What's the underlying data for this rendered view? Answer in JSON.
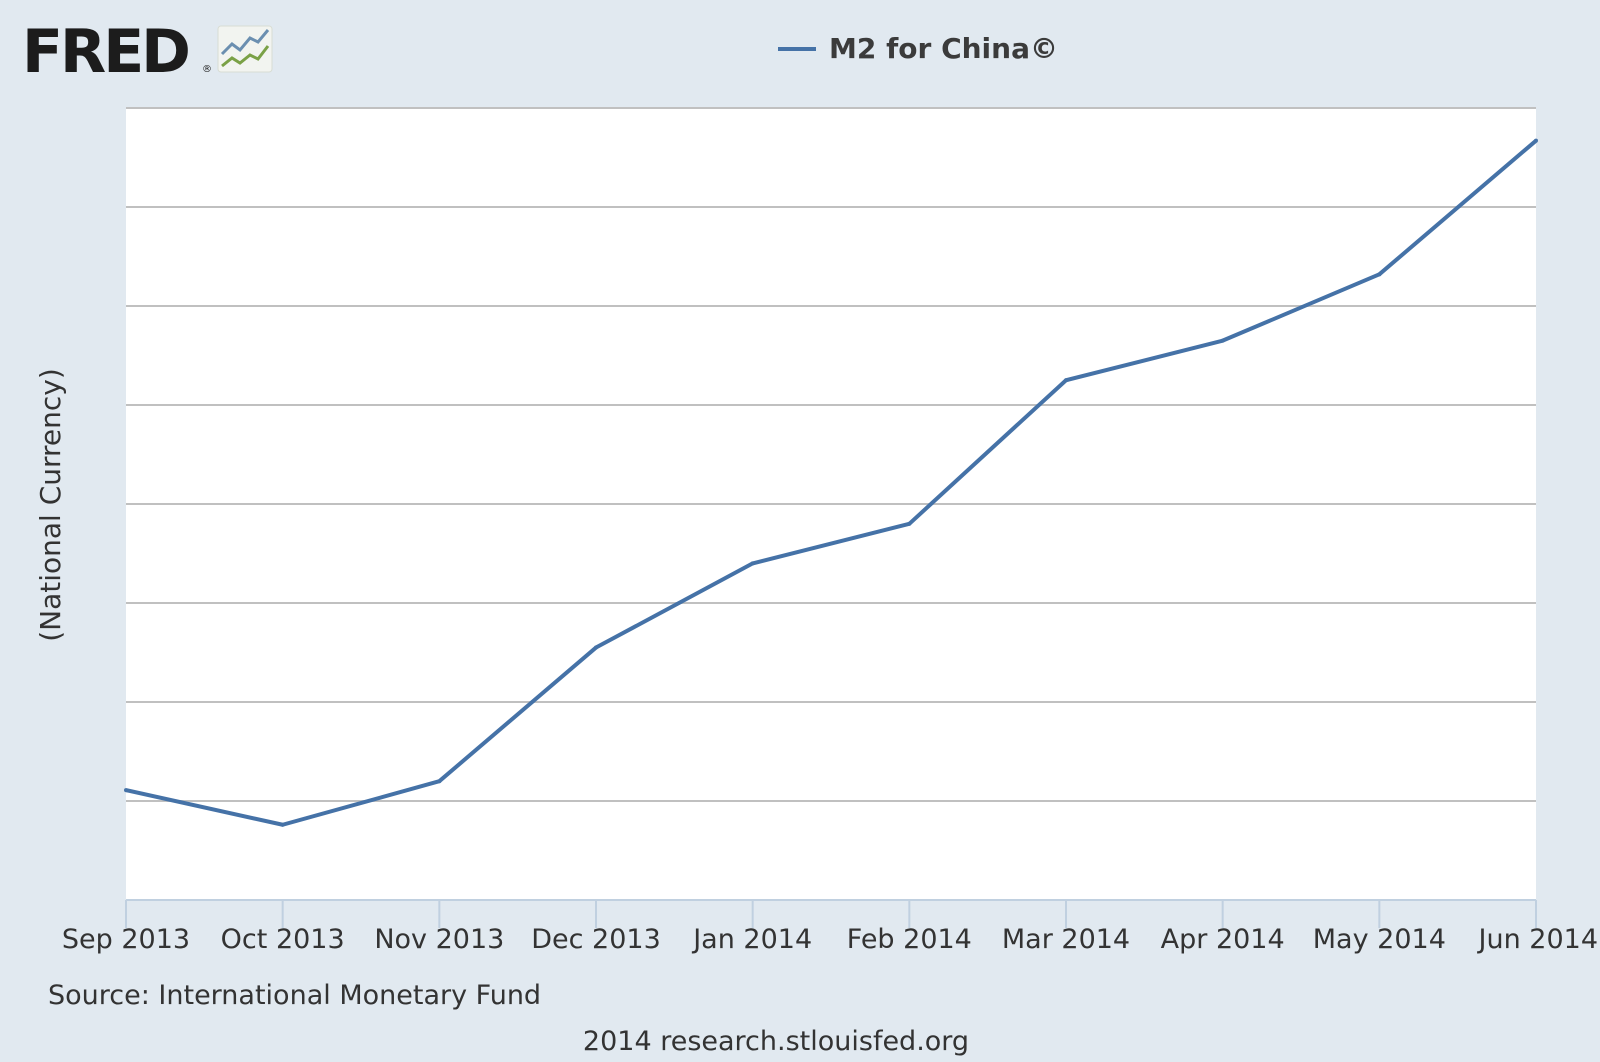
{
  "logo": {
    "text": "FRED",
    "mark": "®"
  },
  "chart_data": {
    "type": "line",
    "title": "",
    "xlabel": "",
    "ylabel": "(National Currency)",
    "categories": [
      "Sep 2013",
      "Oct 2013",
      "Nov 2013",
      "Dec 2013",
      "Jan 2014",
      "Feb 2014",
      "Mar 2014",
      "Apr 2014",
      "May 2014",
      "Jun 2014"
    ],
    "series": [
      {
        "name": "M2 for China©",
        "color": "#4572a7",
        "values": [
          1.11,
          0.76,
          1.2,
          2.55,
          3.4,
          3.8,
          5.25,
          5.65,
          6.32,
          7.67
        ]
      }
    ],
    "ylim": [
      0,
      8
    ],
    "y_ticks_labeled": false,
    "grid": true,
    "legend_position": "top-center"
  },
  "source": "Source: International Monetary Fund",
  "footer": "2014 research.stlouisfed.org",
  "colors": {
    "background": "#e1e9f0",
    "plot_background": "#ffffff",
    "series": "#4572a7",
    "grid": "#c0c0c0",
    "axis": "#c0d0e0"
  }
}
